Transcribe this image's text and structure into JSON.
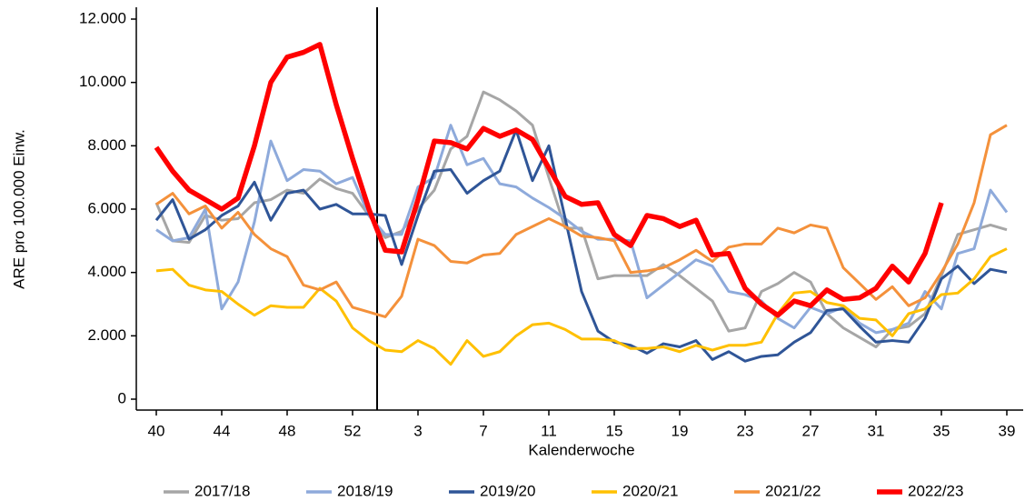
{
  "chart_data": {
    "type": "line",
    "y_label": "ARE pro 100.000 Einw.",
    "x_label": "Kalenderwoche",
    "categories": [
      "40",
      null,
      null,
      null,
      "44",
      null,
      null,
      null,
      "48",
      null,
      null,
      null,
      "52",
      null,
      null,
      null,
      "3",
      null,
      null,
      null,
      "7",
      null,
      null,
      null,
      "11",
      null,
      null,
      null,
      "15",
      null,
      null,
      null,
      "19",
      null,
      null,
      null,
      "23",
      null,
      null,
      null,
      "27",
      null,
      null,
      null,
      "31",
      null,
      null,
      null,
      "35",
      null,
      null,
      null,
      "39"
    ],
    "ylim": [
      0,
      12000
    ],
    "yticks": [
      0,
      {
        "value": 2000,
        "label": "2.000"
      },
      {
        "value": 4000,
        "label": "4.000"
      },
      {
        "value": 6000,
        "label": "6.000"
      },
      {
        "value": 8000,
        "label": "8.000"
      },
      {
        "value": 10000,
        "label": "10.000"
      },
      {
        "value": 12000,
        "label": "12.000"
      }
    ],
    "series": [
      {
        "name": "2017/18",
        "color": "#a6a6a6",
        "values": [
          6200,
          5000,
          4950,
          5800,
          5650,
          5700,
          6200,
          6300,
          6600,
          6500,
          6950,
          6650,
          6500,
          5800,
          5100,
          5300,
          6000,
          6600,
          7900,
          8300,
          9700,
          9450,
          9100,
          8650,
          7000,
          5400,
          5400,
          3800,
          3900,
          3900,
          3900,
          4250,
          3900,
          3500,
          3100,
          2150,
          2250,
          3400,
          3650,
          4000,
          3700,
          2700,
          2250,
          1950,
          1650,
          2200,
          2300,
          2700,
          3900,
          5200,
          5350,
          5500,
          5350
        ]
      },
      {
        "name": "2018/19",
        "color": "#8eaadb",
        "values": [
          5350,
          5000,
          5100,
          6000,
          2850,
          3700,
          5600,
          8150,
          6900,
          7250,
          7200,
          6800,
          7000,
          5800,
          5200,
          5200,
          6700,
          7000,
          8650,
          7400,
          7600,
          6800,
          6700,
          6350,
          6050,
          5700,
          5300,
          5050,
          5050,
          5000,
          3200,
          3600,
          4000,
          4400,
          4200,
          3400,
          3300,
          3100,
          2550,
          2250,
          2900,
          2700,
          2900,
          2400,
          2100,
          2200,
          2400,
          3400,
          2850,
          4600,
          4750,
          6600,
          5900
        ]
      },
      {
        "name": "2019/20",
        "color": "#2f5597",
        "values": [
          5650,
          6300,
          5050,
          5350,
          5800,
          6100,
          6850,
          5650,
          6500,
          6600,
          6000,
          6150,
          5850,
          5850,
          5800,
          4250,
          5800,
          7200,
          7250,
          6500,
          6900,
          7200,
          8500,
          6900,
          8000,
          5700,
          3400,
          2150,
          1800,
          1700,
          1450,
          1750,
          1650,
          1850,
          1250,
          1500,
          1200,
          1350,
          1400,
          1800,
          2100,
          2800,
          2850,
          2300,
          1800,
          1850,
          1800,
          2550,
          3800,
          4200,
          3650,
          4100,
          4000
        ]
      },
      {
        "name": "2020/21",
        "color": "#ffc000",
        "values": [
          4050,
          4100,
          3600,
          3450,
          3400,
          3000,
          2650,
          2950,
          2900,
          2900,
          3500,
          3100,
          2250,
          1850,
          1550,
          1500,
          1850,
          1600,
          1100,
          1850,
          1350,
          1500,
          2000,
          2350,
          2400,
          2200,
          1900,
          1900,
          1850,
          1600,
          1600,
          1650,
          1500,
          1700,
          1550,
          1700,
          1700,
          1800,
          2700,
          3350,
          3400,
          3050,
          2950,
          2550,
          2500,
          2000,
          2700,
          2850,
          3300,
          3350,
          3800,
          4500,
          4750
        ]
      },
      {
        "name": "2021/22",
        "color": "#f4913b",
        "values": [
          6150,
          6500,
          5850,
          6100,
          5400,
          5900,
          5200,
          4750,
          4500,
          3600,
          3450,
          3700,
          2900,
          2750,
          2600,
          3250,
          5050,
          4850,
          4350,
          4300,
          4550,
          4600,
          5200,
          5450,
          5700,
          5450,
          5150,
          5100,
          5000,
          4000,
          4050,
          4150,
          4400,
          4700,
          4350,
          4800,
          4900,
          4900,
          5400,
          5250,
          5500,
          5400,
          4150,
          3650,
          3150,
          3550,
          2950,
          3200,
          4000,
          4900,
          6200,
          8350,
          8650
        ]
      },
      {
        "name": "2022/23",
        "color": "#ff0000",
        "values": [
          7950,
          7200,
          6600,
          6300,
          6000,
          6350,
          8000,
          10000,
          10800,
          10950,
          11200,
          9300,
          7600,
          6000,
          4700,
          4650,
          6300,
          8150,
          8100,
          7900,
          8550,
          8300,
          8500,
          8200,
          7300,
          6400,
          6150,
          6200,
          5200,
          4850,
          5800,
          5700,
          5450,
          5650,
          4550,
          4600,
          3500,
          3000,
          2650,
          3100,
          2950,
          3450,
          3150,
          3200,
          3500,
          4200,
          3700,
          4600,
          6200,
          null,
          null,
          null,
          null
        ]
      }
    ]
  }
}
